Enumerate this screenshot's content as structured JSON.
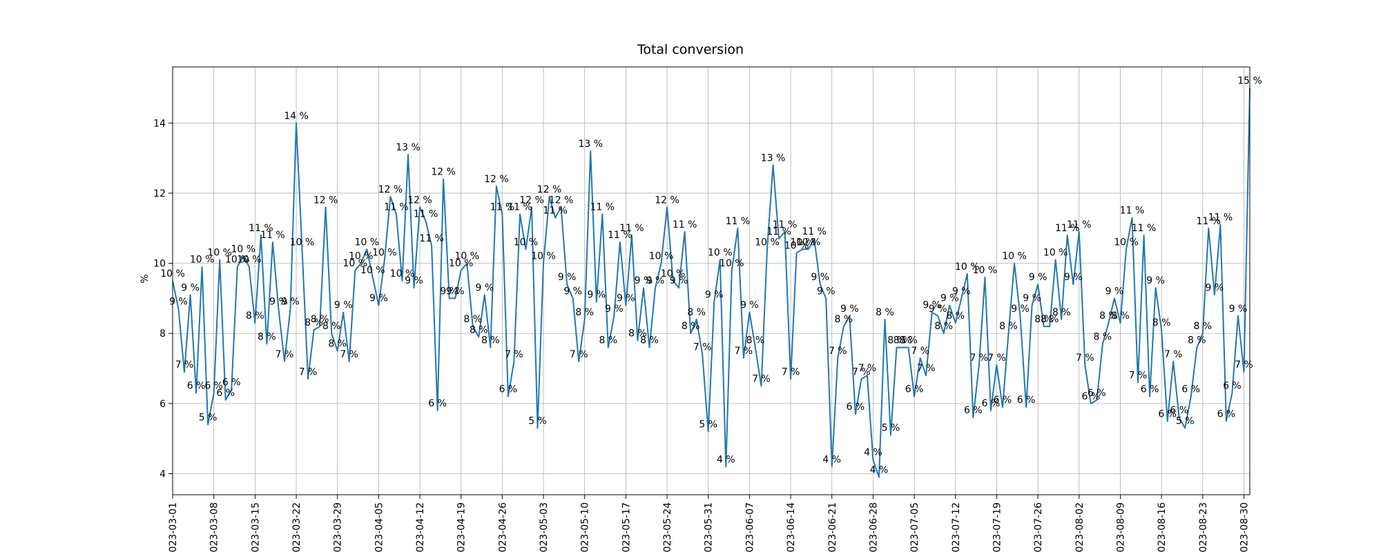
{
  "chart_data": {
    "type": "line",
    "title": "Total conversion",
    "xlabel": "",
    "ylabel": "%",
    "x_start": "2023-03-01",
    "x_end": "2023-08-31",
    "xlim": [
      "2023-03-01",
      "2023-08-31"
    ],
    "ylim": [
      3.4,
      15.6
    ],
    "yticks": [
      4,
      6,
      8,
      10,
      12,
      14
    ],
    "xticks": [
      "2023-03-01",
      "2023-03-08",
      "2023-03-15",
      "2023-03-22",
      "2023-03-29",
      "2023-04-05",
      "2023-04-12",
      "2023-04-19",
      "2023-04-26",
      "2023-05-03",
      "2023-05-10",
      "2023-05-17",
      "2023-05-24",
      "2023-05-31",
      "2023-06-07",
      "2023-06-14",
      "2023-06-21",
      "2023-06-28",
      "2023-07-05",
      "2023-07-12",
      "2023-07-19",
      "2023-07-26",
      "2023-08-02",
      "2023-08-09",
      "2023-08-16",
      "2023-08-23",
      "2023-08-30"
    ],
    "grid": true,
    "line_color": "#1f77b4",
    "label_suffix": " %",
    "series": [
      {
        "values": [
          9.5,
          8.7,
          6.9,
          9.1,
          6.3,
          9.9,
          5.4,
          6.3,
          10.1,
          6.1,
          6.4,
          9.9,
          10.2,
          9.9,
          8.3,
          10.8,
          7.7,
          10.6,
          8.7,
          7.2,
          8.7,
          14.0,
          10.4,
          6.7,
          8.1,
          8.2,
          11.6,
          8.0,
          7.5,
          8.6,
          7.2,
          9.8,
          10.0,
          10.4,
          9.6,
          8.8,
          10.1,
          11.9,
          11.4,
          9.5,
          13.1,
          9.3,
          11.6,
          11.2,
          10.5,
          5.8,
          12.4,
          9.0,
          9.0,
          9.8,
          10.0,
          8.2,
          7.9,
          9.1,
          7.6,
          12.2,
          11.4,
          6.2,
          7.2,
          11.4,
          10.4,
          11.6,
          5.3,
          10.0,
          11.9,
          11.3,
          11.6,
          9.4,
          9.0,
          7.2,
          8.4,
          13.2,
          8.9,
          11.4,
          7.6,
          8.5,
          10.6,
          8.8,
          10.8,
          7.8,
          9.3,
          7.6,
          9.3,
          10.0,
          11.6,
          9.5,
          9.3,
          10.9,
          8.0,
          8.4,
          7.4,
          5.2,
          8.9,
          10.1,
          4.2,
          9.8,
          11.0,
          7.3,
          8.6,
          7.6,
          6.5,
          10.4,
          12.8,
          10.7,
          10.9,
          6.7,
          10.3,
          10.4,
          10.4,
          10.7,
          9.4,
          9.0,
          4.2,
          7.3,
          8.2,
          8.5,
          5.7,
          6.7,
          6.8,
          4.4,
          3.9,
          8.4,
          5.1,
          7.6,
          7.6,
          7.6,
          6.2,
          7.3,
          6.8,
          8.6,
          8.5,
          8.0,
          8.8,
          8.3,
          9.0,
          9.7,
          5.6,
          7.1,
          9.6,
          5.8,
          7.1,
          5.9,
          8.0,
          10.0,
          8.5,
          5.9,
          8.8,
          9.4,
          8.2,
          8.2,
          10.1,
          8.4,
          10.8,
          9.4,
          10.9,
          7.1,
          6.0,
          6.1,
          7.7,
          8.3,
          9.0,
          8.3,
          10.4,
          11.3,
          6.6,
          10.8,
          6.2,
          9.3,
          8.1,
          5.5,
          7.2,
          5.6,
          5.3,
          6.2,
          7.6,
          8.0,
          11.0,
          9.1,
          11.1,
          5.5,
          6.3,
          8.5,
          6.9,
          15.0
        ]
      }
    ]
  }
}
